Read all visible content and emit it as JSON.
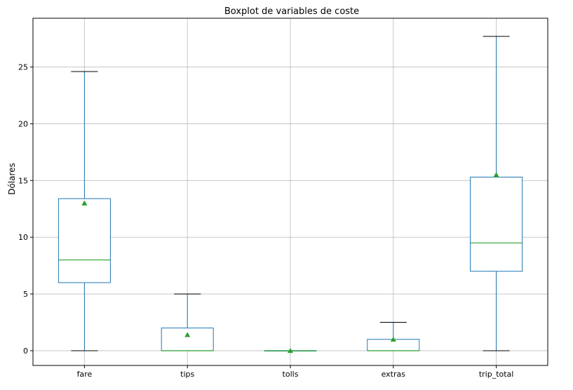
{
  "chart_data": {
    "type": "box",
    "title": "Boxplot de variables de coste",
    "xlabel": "",
    "ylabel": "Dólares",
    "ylim": [
      -1.3,
      29.3
    ],
    "yticks": [
      0,
      5,
      10,
      15,
      20,
      25
    ],
    "grid": true,
    "categories": [
      "fare",
      "tips",
      "tolls",
      "extras",
      "trip_total"
    ],
    "boxes": [
      {
        "name": "fare",
        "whisker_low": 0,
        "q1": 6.0,
        "median": 8.0,
        "q3": 13.4,
        "whisker_high": 24.6,
        "mean": 13.0
      },
      {
        "name": "tips",
        "whisker_low": 0,
        "q1": 0,
        "median": 0,
        "q3": 2.0,
        "whisker_high": 5.0,
        "mean": 1.4
      },
      {
        "name": "tolls",
        "whisker_low": 0,
        "q1": 0,
        "median": 0,
        "q3": 0,
        "whisker_high": 0,
        "mean": 0
      },
      {
        "name": "extras",
        "whisker_low": 0,
        "q1": 0,
        "median": 0,
        "q3": 1.0,
        "whisker_high": 2.5,
        "mean": 1.0
      },
      {
        "name": "trip_total",
        "whisker_low": 0,
        "q1": 7.0,
        "median": 9.5,
        "q3": 15.3,
        "whisker_high": 27.7,
        "mean": 15.5
      }
    ],
    "colors": {
      "box": "#1f77b4",
      "median": "#2ca02c",
      "mean_marker": "#2ca02c",
      "cap": "#000000",
      "grid": "#b0b0b0",
      "axes": "#000000"
    }
  }
}
